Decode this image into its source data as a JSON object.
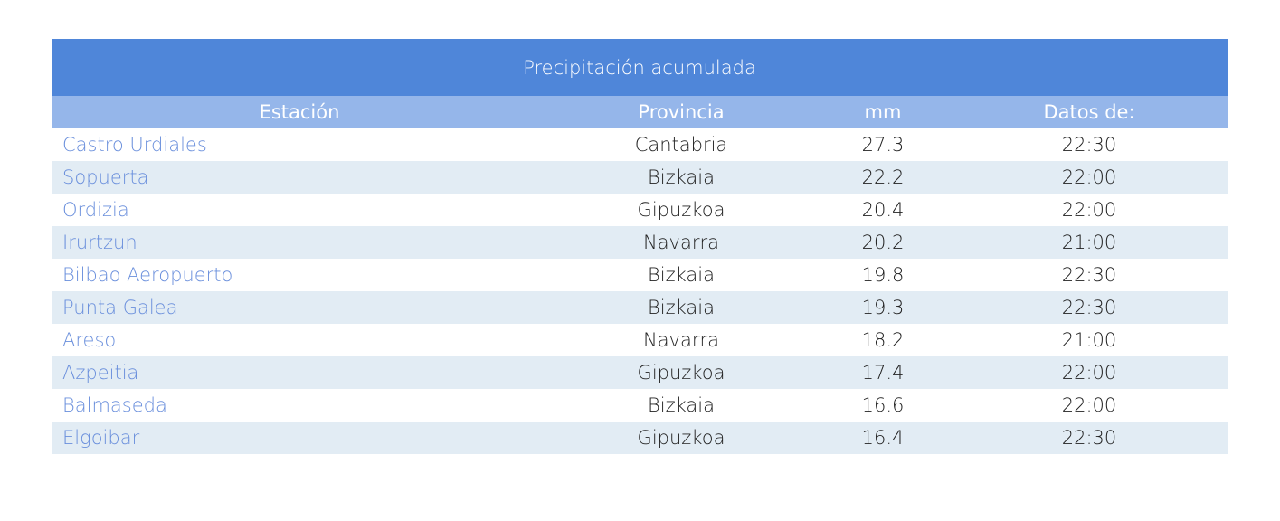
{
  "title": "Precipitación acumulada",
  "columns": [
    "Estación",
    "Provincia",
    "mm",
    "Datos de:"
  ],
  "rows": [
    [
      "Castro Urdiales",
      "Cantabria",
      "27.3",
      "22:30"
    ],
    [
      "Sopuerta",
      "Bizkaia",
      "22.2",
      "22:00"
    ],
    [
      "Ordizia",
      "Gipuzkoa",
      "20.4",
      "22:00"
    ],
    [
      "Irurtzun",
      "Navarra",
      "20.2",
      "21:00"
    ],
    [
      "Bilbao Aeropuerto",
      "Bizkaia",
      "19.8",
      "22:30"
    ],
    [
      "Punta Galea",
      "Bizkaia",
      "19.3",
      "22:30"
    ],
    [
      "Areso",
      "Navarra",
      "18.2",
      "21:00"
    ],
    [
      "Azpeitia",
      "Gipuzkoa",
      "17.4",
      "22:00"
    ],
    [
      "Balmaseda",
      "Bizkaia",
      "16.6",
      "22:00"
    ],
    [
      "Elgoibar",
      "Gipuzkoa",
      "16.4",
      "22:30"
    ]
  ],
  "colors": {
    "title_bg": "#4f86d9",
    "header_bg": "#95b6ea",
    "stripe": "#e2ecf4",
    "link": "#6a8fdc"
  }
}
